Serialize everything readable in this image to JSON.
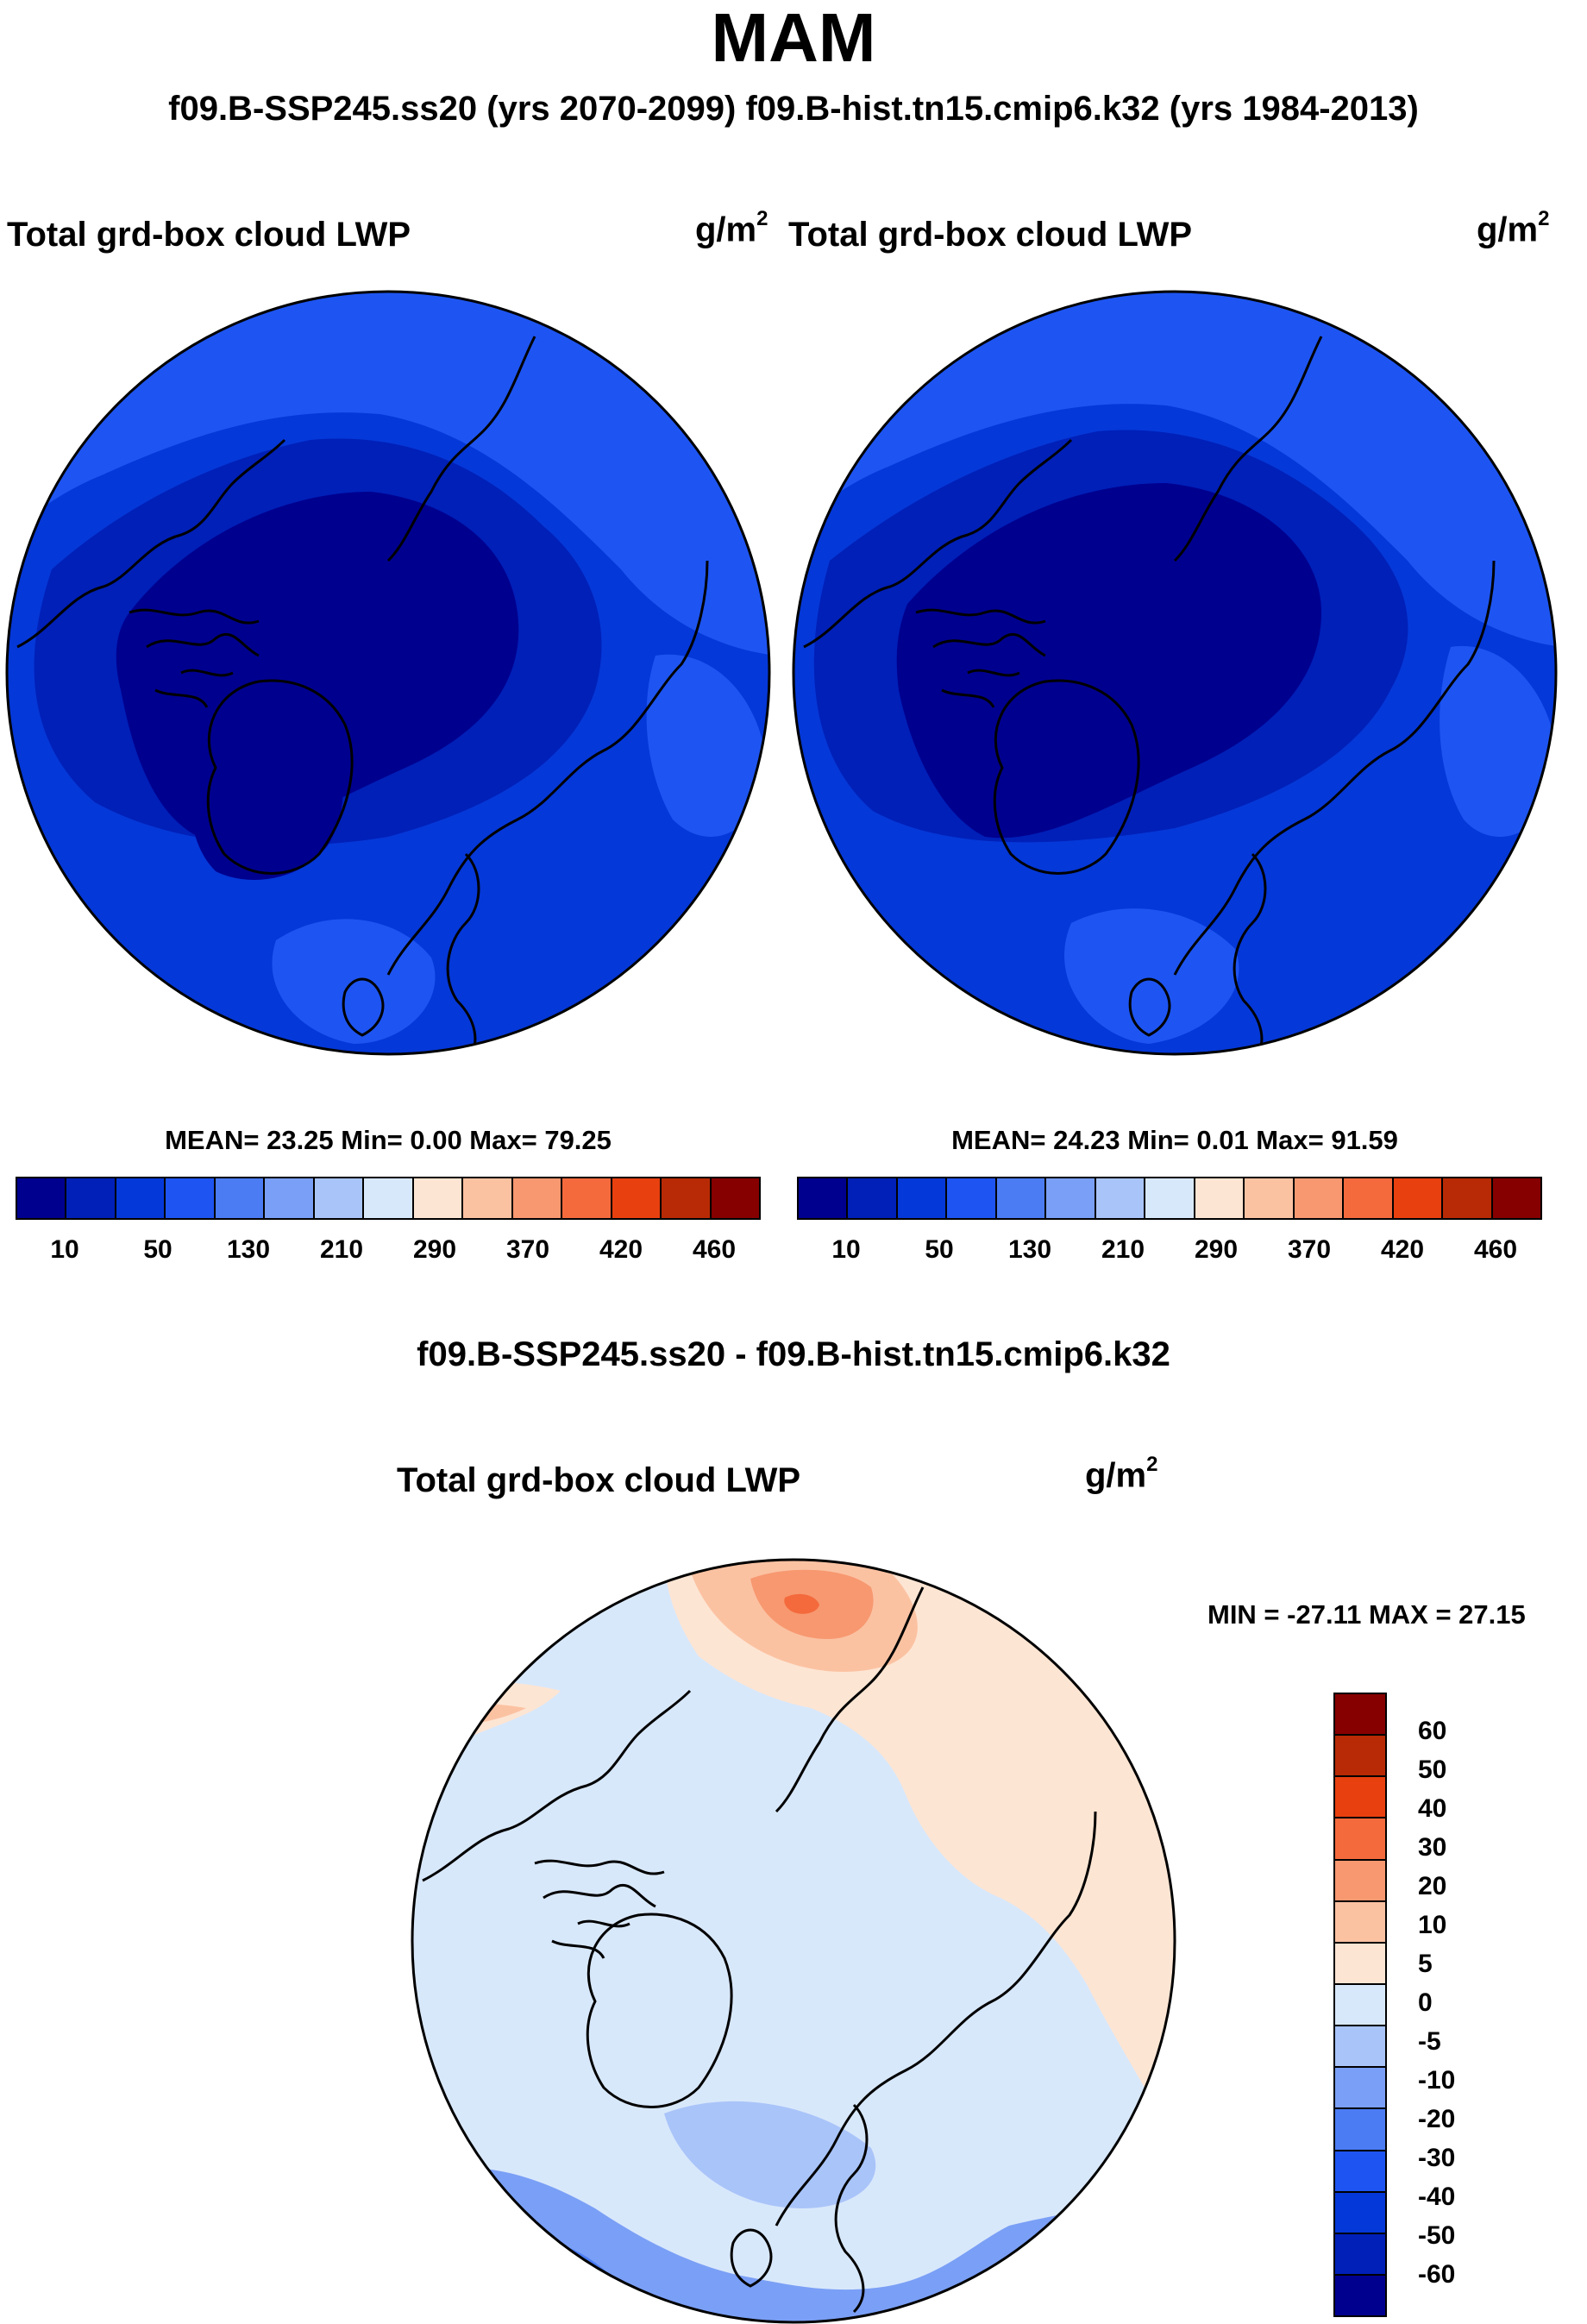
{
  "figure": {
    "title": "MAM",
    "subtitle": "f09.B-SSP245.ss20 (yrs 2070-2099)  f09.B-hist.tn15.cmip6.k32 (yrs 1984-2013)"
  },
  "panels": {
    "left": {
      "variable": "Total grd-box cloud LWP",
      "units": "g/m",
      "units_exp": "2",
      "stats": "MEAN=  23.25  Min=   0.00  Max=  79.25",
      "ticks": [
        "10",
        "50",
        "130",
        "210",
        "290",
        "370",
        "420",
        "460"
      ]
    },
    "right": {
      "variable": "Total grd-box cloud LWP",
      "units": "g/m",
      "units_exp": "2",
      "stats": "MEAN=  24.23  Min=   0.01  Max=  91.59",
      "ticks": [
        "10",
        "50",
        "130",
        "210",
        "290",
        "370",
        "420",
        "460"
      ]
    },
    "diff": {
      "title": "f09.B-SSP245.ss20 - f09.B-hist.tn15.cmip6.k32",
      "variable": "Total grd-box cloud LWP",
      "units": "g/m",
      "units_exp": "2",
      "stats": "MIN = -27.11 MAX =  27.15",
      "ticks": [
        "60",
        "50",
        "40",
        "30",
        "20",
        "10",
        "5",
        "0",
        "-5",
        "-10",
        "-20",
        "-30",
        "-40",
        "-50",
        "-60"
      ]
    }
  },
  "colors": {
    "abs_scale": [
      "#00008f",
      "#0020b8",
      "#0538d8",
      "#1e55f2",
      "#4b7cf4",
      "#7a9ff6",
      "#a9c4f9",
      "#d8e8fb",
      "#fde5d3",
      "#fbc2a2",
      "#f79870",
      "#f46a3c",
      "#e8400f",
      "#b82a05",
      "#860000"
    ],
    "diff_scale": [
      "#860000",
      "#b82a05",
      "#e8400f",
      "#f46a3c",
      "#f79870",
      "#fbc2a2",
      "#fde5d3",
      "#d8e8fb",
      "#a9c4f9",
      "#7a9ff6",
      "#4b7cf4",
      "#1e55f2",
      "#0538d8",
      "#0020b8",
      "#00008f"
    ]
  }
}
